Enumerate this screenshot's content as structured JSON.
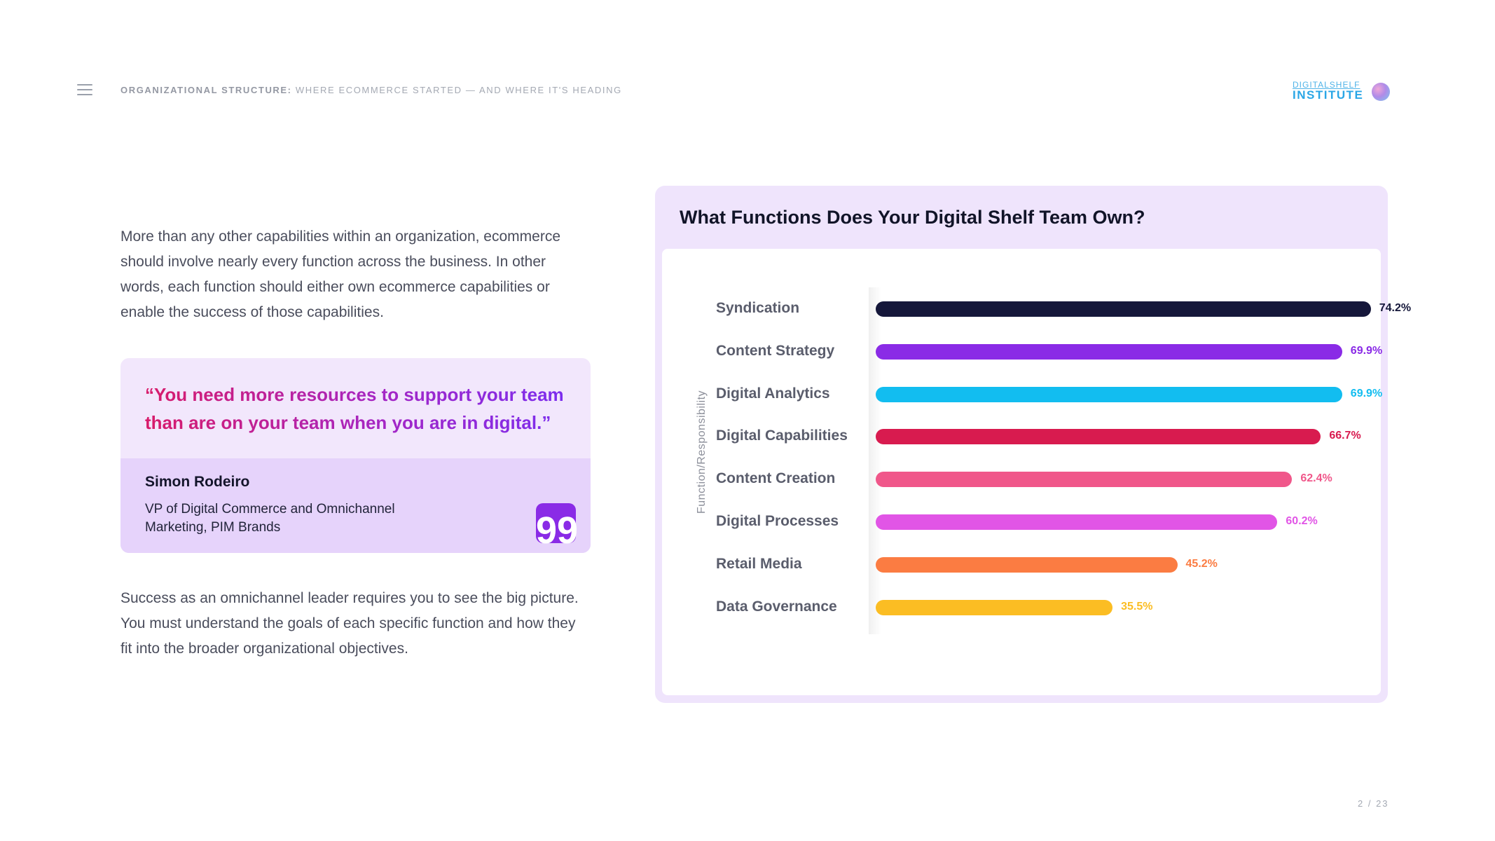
{
  "header": {
    "title_bold": "ORGANIZATIONAL STRUCTURE:",
    "title_rest": "WHERE ECOMMERCE STARTED — AND WHERE IT'S HEADING",
    "logo_top": "DIGITALSHELF",
    "logo_bottom": "INSTITUTE"
  },
  "intro_text": "More than any other capabilities within an organization, ecommerce should involve nearly every function across the business. In other words, each function should either own ecommerce capabilities or enable the success of those capabilities.",
  "quote": {
    "text": "“You need more resources to support your team than are on your team when you are in digital.”",
    "author": "Simon Rodeiro",
    "role": "VP of Digital Commerce and Omnichannel Marketing, PIM Brands",
    "badge": "99"
  },
  "outro_text": "Success as an omnichannel leader requires you to see the big picture. You must understand the goals of each specific function and how they fit into the broader organizational objectives.",
  "chart_data": {
    "type": "bar",
    "orientation": "horizontal",
    "title": "What Functions Does Your Digital Shelf Team Own?",
    "ylabel": "Function/Responsibility",
    "xlabel": "",
    "xlim": [
      0,
      80
    ],
    "grid": false,
    "categories": [
      "Syndication",
      "Content Strategy",
      "Digital Analytics",
      "Digital Capabilities",
      "Content Creation",
      "Digital Processes",
      "Retail Media",
      "Data Governance"
    ],
    "values": [
      74.2,
      69.9,
      69.9,
      66.7,
      62.4,
      60.2,
      45.2,
      35.5
    ],
    "value_labels": [
      "74.2%",
      "69.9%",
      "69.9%",
      "66.7%",
      "62.4%",
      "60.2%",
      "45.2%",
      "35.5%"
    ],
    "colors": [
      "#15173a",
      "#8a2be6",
      "#12bdf0",
      "#d81b4f",
      "#f0578a",
      "#e155e6",
      "#fb7c42",
      "#fbbd23"
    ],
    "label_colors": [
      "#15173a",
      "#8a2be6",
      "#12bdf0",
      "#d81b4f",
      "#f0578a",
      "#e155e6",
      "#fb7c42",
      "#fbbd23"
    ]
  },
  "page_number": "2 / 23"
}
